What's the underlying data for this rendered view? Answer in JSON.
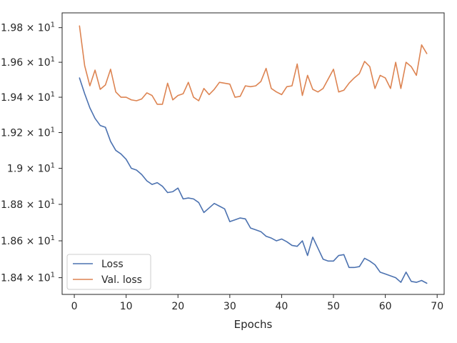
{
  "chart_data": {
    "type": "line",
    "title": "",
    "xlabel": "Epochs",
    "ylabel": "",
    "xlim": [
      -2.35,
      71.35
    ],
    "ylim": [
      18.31,
      19.886
    ],
    "yscale": "log",
    "grid": false,
    "legend_position": "bottom-left",
    "x_ticks": [
      0,
      10,
      20,
      30,
      40,
      50,
      60,
      70
    ],
    "x_tick_labels": [
      "0",
      "10",
      "20",
      "30",
      "40",
      "50",
      "60",
      "70"
    ],
    "y_ticks": [
      18.4,
      18.6,
      18.8,
      19.0,
      19.2,
      19.4,
      19.6,
      19.8
    ],
    "y_tick_mantissa": [
      "1.84",
      "1.86",
      "1.88",
      "1.9",
      "1.92",
      "1.94",
      "1.96",
      "1.98"
    ],
    "y_tick_times": "×",
    "y_tick_base": "10",
    "y_tick_exponent": "1",
    "x": [
      1,
      2,
      3,
      4,
      5,
      6,
      7,
      8,
      9,
      10,
      11,
      12,
      13,
      14,
      15,
      16,
      17,
      18,
      19,
      20,
      21,
      22,
      23,
      24,
      25,
      26,
      27,
      28,
      29,
      30,
      31,
      32,
      33,
      34,
      35,
      36,
      37,
      38,
      39,
      40,
      41,
      42,
      43,
      44,
      45,
      46,
      47,
      48,
      49,
      50,
      51,
      52,
      53,
      54,
      55,
      56,
      57,
      58,
      59,
      60,
      61,
      62,
      63,
      64,
      65,
      66,
      67,
      68
    ],
    "series": [
      {
        "name": "Loss",
        "color": "#4c72b0",
        "values": [
          19.51,
          19.42,
          19.34,
          19.28,
          19.24,
          19.23,
          19.15,
          19.1,
          19.08,
          19.05,
          19.0,
          18.99,
          18.965,
          18.93,
          18.91,
          18.92,
          18.9,
          18.865,
          18.87,
          18.89,
          18.83,
          18.835,
          18.83,
          18.81,
          18.755,
          18.78,
          18.805,
          18.79,
          18.775,
          18.705,
          18.715,
          18.725,
          18.72,
          18.67,
          18.66,
          18.65,
          18.625,
          18.615,
          18.6,
          18.61,
          18.595,
          18.575,
          18.57,
          18.6,
          18.52,
          18.62,
          18.56,
          18.5,
          18.49,
          18.49,
          18.52,
          18.525,
          18.455,
          18.455,
          18.46,
          18.505,
          18.49,
          18.47,
          18.43,
          18.42,
          18.41,
          18.4,
          18.375,
          18.43,
          18.38,
          18.375,
          18.385,
          18.37
        ]
      },
      {
        "name": "Val. loss",
        "color": "#dd8452",
        "values": [
          19.81,
          19.58,
          19.465,
          19.555,
          19.445,
          19.47,
          19.56,
          19.43,
          19.4,
          19.4,
          19.385,
          19.38,
          19.39,
          19.425,
          19.41,
          19.36,
          19.36,
          19.48,
          19.385,
          19.41,
          19.42,
          19.485,
          19.4,
          19.38,
          19.45,
          19.415,
          19.445,
          19.485,
          19.48,
          19.475,
          19.4,
          19.405,
          19.465,
          19.46,
          19.465,
          19.49,
          19.565,
          19.45,
          19.43,
          19.415,
          19.46,
          19.465,
          19.59,
          19.41,
          19.525,
          19.445,
          19.43,
          19.45,
          19.505,
          19.56,
          19.43,
          19.44,
          19.48,
          19.51,
          19.535,
          19.605,
          19.575,
          19.45,
          19.525,
          19.51,
          19.45,
          19.6,
          19.45,
          19.6,
          19.575,
          19.525,
          19.7,
          19.65
        ]
      }
    ]
  }
}
